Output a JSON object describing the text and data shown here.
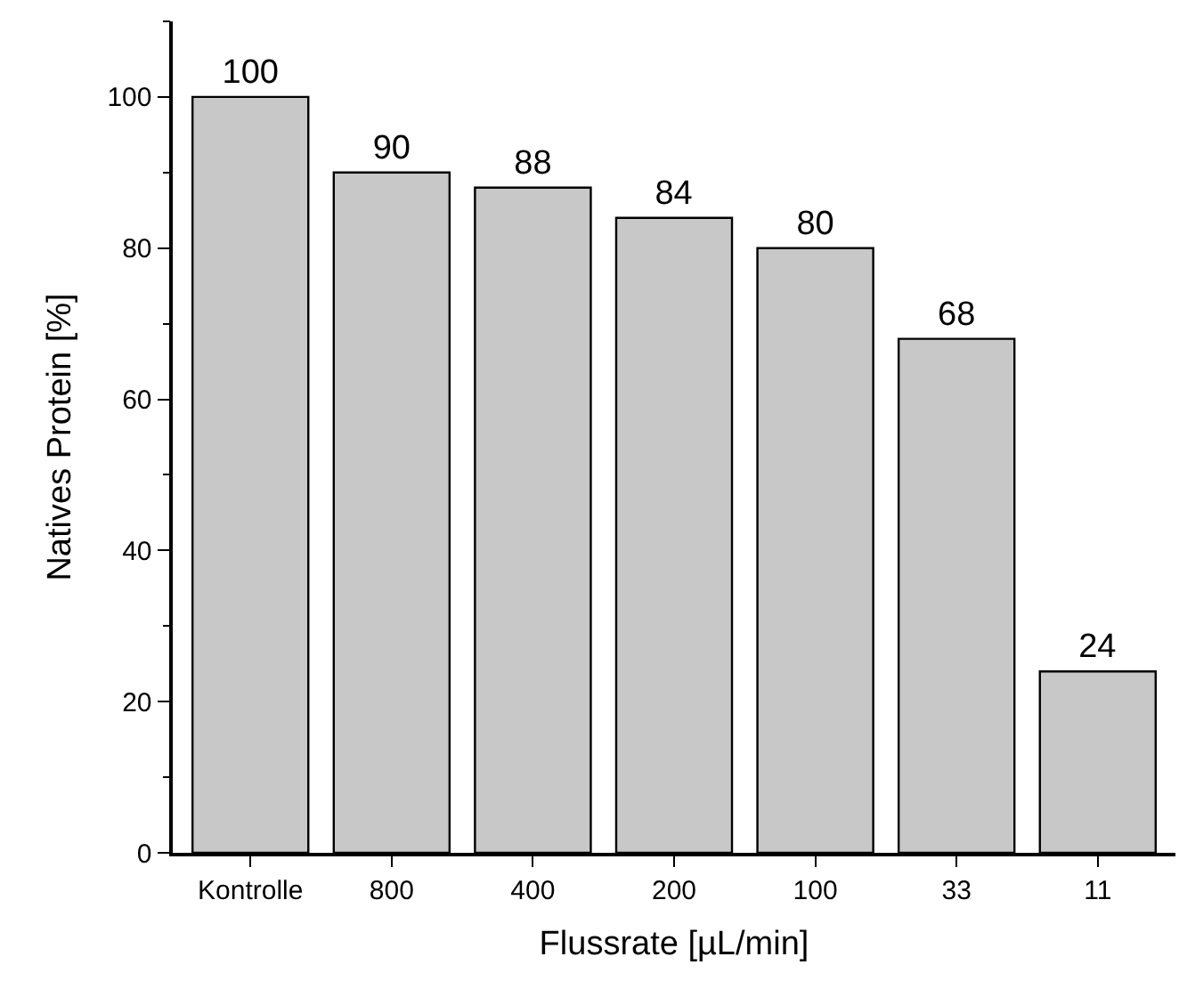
{
  "chart_data": {
    "type": "bar",
    "xlabel": "Flussrate [µL/min]",
    "ylabel": "Natives Protein [%]",
    "categories": [
      "Kontrolle",
      "800",
      "400",
      "200",
      "100",
      "33",
      "11"
    ],
    "values": [
      100,
      90,
      88,
      84,
      80,
      68,
      24
    ],
    "color": "#c8c8c8",
    "ylim": [
      0,
      110
    ],
    "yticks": [
      0,
      20,
      40,
      60,
      80,
      100
    ],
    "data_labels": true
  }
}
